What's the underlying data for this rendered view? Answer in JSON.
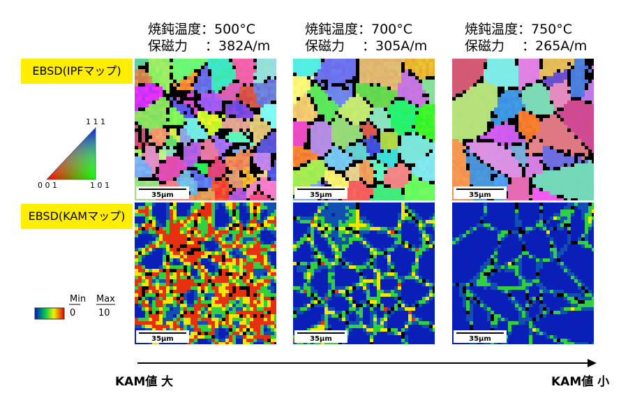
{
  "columns": [
    {
      "anneal": "焼鈍温度：500°C",
      "coercivity": "保磁力　 ：382A/m"
    },
    {
      "anneal": "焼鈍温度：700°C",
      "coercivity": "保磁力　 ：305A/m"
    },
    {
      "anneal": "焼鈍温度：750°C",
      "coercivity": "保磁力　 ：265A/m"
    }
  ],
  "rows": [
    {
      "label": "EBSD(IPFマップ)"
    },
    {
      "label": "EBSD(KAMマップ)"
    }
  ],
  "scale_bars": [
    [
      "35μm",
      "35μm",
      "35μm"
    ],
    [
      "35μm",
      "35μm",
      "35μm"
    ]
  ],
  "ipf_legend": {
    "top": "1 1 1",
    "left": "0 0 1",
    "right": "1 0 1"
  },
  "kam_legend": {
    "min_label": "Min",
    "max_label": "Max",
    "min_value": "0",
    "max_value": "10"
  },
  "arrow": {
    "left": "KAM値 大",
    "right": "KAM値 小"
  }
}
